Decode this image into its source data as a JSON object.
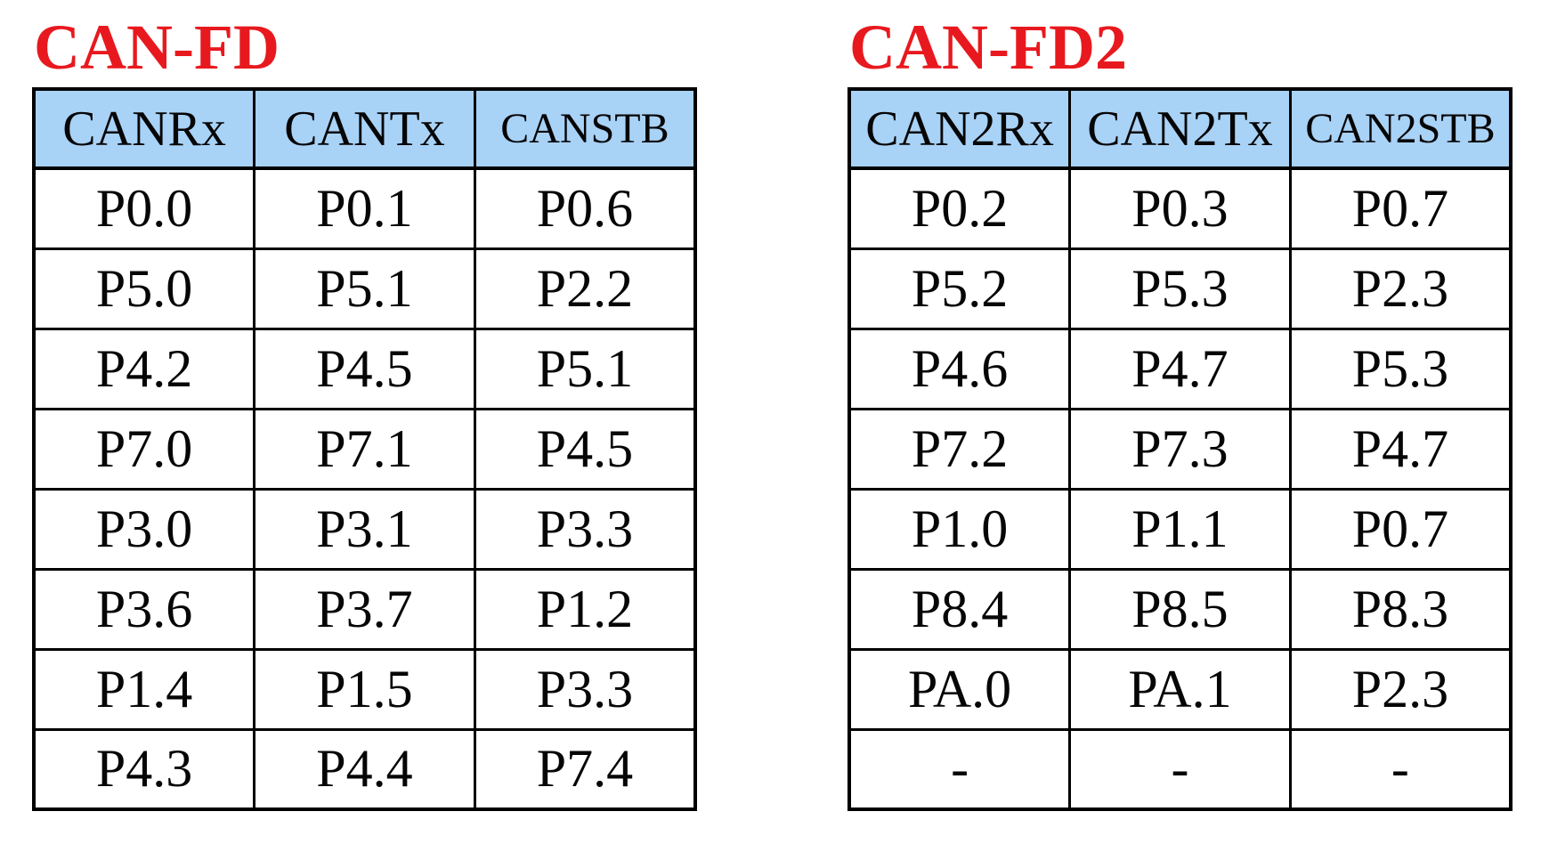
{
  "tables": [
    {
      "title": "CAN-FD",
      "columns": [
        "CANRx",
        "CANTx",
        "CANSTB"
      ],
      "rows": [
        [
          "P0.0",
          "P0.1",
          "P0.6"
        ],
        [
          "P5.0",
          "P5.1",
          "P2.2"
        ],
        [
          "P4.2",
          "P4.5",
          "P5.1"
        ],
        [
          "P7.0",
          "P7.1",
          "P4.5"
        ],
        [
          "P3.0",
          "P3.1",
          "P3.3"
        ],
        [
          "P3.6",
          "P3.7",
          "P1.2"
        ],
        [
          "P1.4",
          "P1.5",
          "P3.3"
        ],
        [
          "P4.3",
          "P4.4",
          "P7.4"
        ]
      ]
    },
    {
      "title": "CAN-FD2",
      "columns": [
        "CAN2Rx",
        "CAN2Tx",
        "CAN2STB"
      ],
      "rows": [
        [
          "P0.2",
          "P0.3",
          "P0.7"
        ],
        [
          "P5.2",
          "P5.3",
          "P2.3"
        ],
        [
          "P4.6",
          "P4.7",
          "P5.3"
        ],
        [
          "P7.2",
          "P7.3",
          "P4.7"
        ],
        [
          "P1.0",
          "P1.1",
          "P0.7"
        ],
        [
          "P8.4",
          "P8.5",
          "P8.3"
        ],
        [
          "PA.0",
          "PA.1",
          "P2.3"
        ],
        [
          "-",
          "-",
          "-"
        ]
      ]
    }
  ],
  "colors": {
    "title_red": "#e8191e",
    "header_blue": "#a9d2f7",
    "border_black": "#000000",
    "page_bg": "#ffffff"
  }
}
